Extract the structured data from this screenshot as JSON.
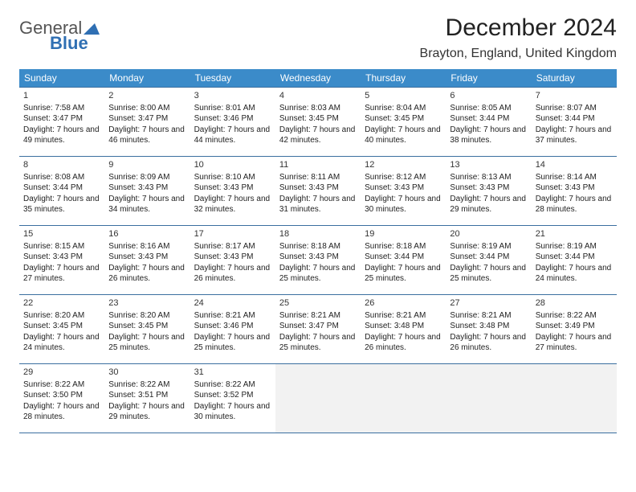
{
  "logo": {
    "top": "General",
    "bottom": "Blue",
    "accent_color": "#2f6fb3"
  },
  "title": "December 2024",
  "location": "Brayton, England, United Kingdom",
  "header_bg": "#3b8bc9",
  "border_color": "#3b6fa0",
  "weekdays": [
    "Sunday",
    "Monday",
    "Tuesday",
    "Wednesday",
    "Thursday",
    "Friday",
    "Saturday"
  ],
  "weeks": [
    [
      {
        "n": "1",
        "sr": "7:58 AM",
        "ss": "3:47 PM",
        "dl": "7 hours and 49 minutes."
      },
      {
        "n": "2",
        "sr": "8:00 AM",
        "ss": "3:47 PM",
        "dl": "7 hours and 46 minutes."
      },
      {
        "n": "3",
        "sr": "8:01 AM",
        "ss": "3:46 PM",
        "dl": "7 hours and 44 minutes."
      },
      {
        "n": "4",
        "sr": "8:03 AM",
        "ss": "3:45 PM",
        "dl": "7 hours and 42 minutes."
      },
      {
        "n": "5",
        "sr": "8:04 AM",
        "ss": "3:45 PM",
        "dl": "7 hours and 40 minutes."
      },
      {
        "n": "6",
        "sr": "8:05 AM",
        "ss": "3:44 PM",
        "dl": "7 hours and 38 minutes."
      },
      {
        "n": "7",
        "sr": "8:07 AM",
        "ss": "3:44 PM",
        "dl": "7 hours and 37 minutes."
      }
    ],
    [
      {
        "n": "8",
        "sr": "8:08 AM",
        "ss": "3:44 PM",
        "dl": "7 hours and 35 minutes."
      },
      {
        "n": "9",
        "sr": "8:09 AM",
        "ss": "3:43 PM",
        "dl": "7 hours and 34 minutes."
      },
      {
        "n": "10",
        "sr": "8:10 AM",
        "ss": "3:43 PM",
        "dl": "7 hours and 32 minutes."
      },
      {
        "n": "11",
        "sr": "8:11 AM",
        "ss": "3:43 PM",
        "dl": "7 hours and 31 minutes."
      },
      {
        "n": "12",
        "sr": "8:12 AM",
        "ss": "3:43 PM",
        "dl": "7 hours and 30 minutes."
      },
      {
        "n": "13",
        "sr": "8:13 AM",
        "ss": "3:43 PM",
        "dl": "7 hours and 29 minutes."
      },
      {
        "n": "14",
        "sr": "8:14 AM",
        "ss": "3:43 PM",
        "dl": "7 hours and 28 minutes."
      }
    ],
    [
      {
        "n": "15",
        "sr": "8:15 AM",
        "ss": "3:43 PM",
        "dl": "7 hours and 27 minutes."
      },
      {
        "n": "16",
        "sr": "8:16 AM",
        "ss": "3:43 PM",
        "dl": "7 hours and 26 minutes."
      },
      {
        "n": "17",
        "sr": "8:17 AM",
        "ss": "3:43 PM",
        "dl": "7 hours and 26 minutes."
      },
      {
        "n": "18",
        "sr": "8:18 AM",
        "ss": "3:43 PM",
        "dl": "7 hours and 25 minutes."
      },
      {
        "n": "19",
        "sr": "8:18 AM",
        "ss": "3:44 PM",
        "dl": "7 hours and 25 minutes."
      },
      {
        "n": "20",
        "sr": "8:19 AM",
        "ss": "3:44 PM",
        "dl": "7 hours and 25 minutes."
      },
      {
        "n": "21",
        "sr": "8:19 AM",
        "ss": "3:44 PM",
        "dl": "7 hours and 24 minutes."
      }
    ],
    [
      {
        "n": "22",
        "sr": "8:20 AM",
        "ss": "3:45 PM",
        "dl": "7 hours and 24 minutes."
      },
      {
        "n": "23",
        "sr": "8:20 AM",
        "ss": "3:45 PM",
        "dl": "7 hours and 25 minutes."
      },
      {
        "n": "24",
        "sr": "8:21 AM",
        "ss": "3:46 PM",
        "dl": "7 hours and 25 minutes."
      },
      {
        "n": "25",
        "sr": "8:21 AM",
        "ss": "3:47 PM",
        "dl": "7 hours and 25 minutes."
      },
      {
        "n": "26",
        "sr": "8:21 AM",
        "ss": "3:48 PM",
        "dl": "7 hours and 26 minutes."
      },
      {
        "n": "27",
        "sr": "8:21 AM",
        "ss": "3:48 PM",
        "dl": "7 hours and 26 minutes."
      },
      {
        "n": "28",
        "sr": "8:22 AM",
        "ss": "3:49 PM",
        "dl": "7 hours and 27 minutes."
      }
    ],
    [
      {
        "n": "29",
        "sr": "8:22 AM",
        "ss": "3:50 PM",
        "dl": "7 hours and 28 minutes."
      },
      {
        "n": "30",
        "sr": "8:22 AM",
        "ss": "3:51 PM",
        "dl": "7 hours and 29 minutes."
      },
      {
        "n": "31",
        "sr": "8:22 AM",
        "ss": "3:52 PM",
        "dl": "7 hours and 30 minutes."
      },
      null,
      null,
      null,
      null
    ]
  ],
  "labels": {
    "sunrise": "Sunrise: ",
    "sunset": "Sunset: ",
    "daylight": "Daylight: "
  }
}
